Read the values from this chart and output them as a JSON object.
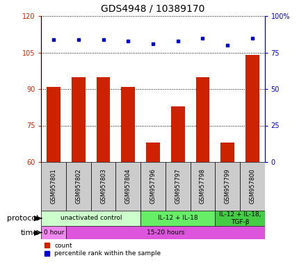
{
  "title": "GDS4948 / 10389170",
  "samples": [
    "GSM957801",
    "GSM957802",
    "GSM957803",
    "GSM957804",
    "GSM957796",
    "GSM957797",
    "GSM957798",
    "GSM957799",
    "GSM957800"
  ],
  "bar_heights": [
    91,
    95,
    95,
    91,
    68,
    83,
    95,
    68,
    104
  ],
  "bar_bottoms": [
    60,
    60,
    60,
    60,
    60,
    60,
    60,
    60,
    60
  ],
  "percentile_values": [
    84,
    84,
    84,
    83,
    81,
    83,
    85,
    80,
    85
  ],
  "bar_color": "#cc2200",
  "dot_color": "#0000cc",
  "ylim_left": [
    60,
    120
  ],
  "ylim_right": [
    0,
    100
  ],
  "yticks_left": [
    60,
    75,
    90,
    105,
    120
  ],
  "yticks_right": [
    0,
    25,
    50,
    75,
    100
  ],
  "protocol_groups": [
    {
      "label": "unactivated control",
      "start": 0,
      "end": 4,
      "color": "#ccffcc"
    },
    {
      "label": "IL-12 + IL-18",
      "start": 4,
      "end": 7,
      "color": "#66ee66"
    },
    {
      "label": "IL-12 + IL-18,\nTGF-β",
      "start": 7,
      "end": 9,
      "color": "#44cc44"
    }
  ],
  "time_groups": [
    {
      "label": "0 hour",
      "start": 0,
      "end": 1,
      "color": "#ee88ee"
    },
    {
      "label": "15-20 hours",
      "start": 1,
      "end": 9,
      "color": "#dd55dd"
    }
  ],
  "legend_items": [
    {
      "label": "count",
      "color": "#cc2200"
    },
    {
      "label": "percentile rank within the sample",
      "color": "#0000cc"
    }
  ],
  "protocol_label": "protocol",
  "time_label": "time",
  "title_fontsize": 10,
  "tick_fontsize": 7,
  "bar_width": 0.55,
  "sample_box_color": "#cccccc",
  "fig_bg": "#ffffff"
}
